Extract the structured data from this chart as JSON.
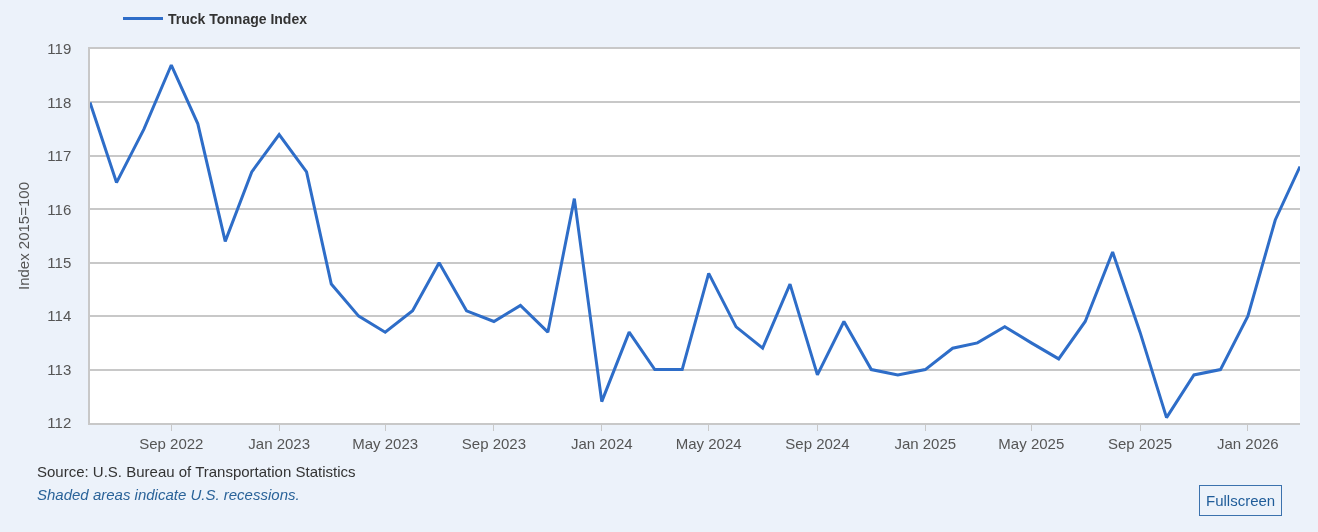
{
  "chart_data": {
    "type": "line",
    "ylabel": "Index 2015=100",
    "x": [
      "2022-06",
      "2022-07",
      "2022-08",
      "2022-09",
      "2022-10",
      "2022-11",
      "2022-12",
      "2023-01",
      "2023-02",
      "2023-03",
      "2023-04",
      "2023-05",
      "2023-06",
      "2023-07",
      "2023-08",
      "2023-09",
      "2023-10",
      "2023-11",
      "2023-12",
      "2024-01",
      "2024-02",
      "2024-03",
      "2024-04",
      "2024-05",
      "2024-06",
      "2024-07",
      "2024-08",
      "2024-09",
      "2024-10",
      "2024-11",
      "2024-12",
      "2025-01",
      "2025-02",
      "2025-03",
      "2025-04",
      "2025-05",
      "2025-06",
      "2025-07",
      "2025-08",
      "2025-09",
      "2025-10",
      "2025-11",
      "2025-12",
      "2026-01",
      "2026-02",
      "2026-03"
    ],
    "series": [
      {
        "name": "Truck Tonnage Index",
        "color": "#2e6dc8",
        "values": [
          118.0,
          116.5,
          117.5,
          118.7,
          117.6,
          115.4,
          116.7,
          117.4,
          116.7,
          114.6,
          114.0,
          113.7,
          114.1,
          115.0,
          114.1,
          113.9,
          114.2,
          113.7,
          116.2,
          112.4,
          113.7,
          113.0,
          113.0,
          114.8,
          113.8,
          113.4,
          114.6,
          112.9,
          113.9,
          113.0,
          112.9,
          113.0,
          113.4,
          113.5,
          113.8,
          113.5,
          113.2,
          113.9,
          115.2,
          113.7,
          112.1,
          112.9,
          113.0,
          114.0,
          115.8,
          116.8
        ]
      }
    ],
    "xlim": [
      "2022-06",
      "2026-03"
    ],
    "xticks": [
      {
        "value": "2022-09",
        "label": "Sep 2022"
      },
      {
        "value": "2023-01",
        "label": "Jan 2023"
      },
      {
        "value": "2023-05",
        "label": "May 2023"
      },
      {
        "value": "2023-09",
        "label": "Sep 2023"
      },
      {
        "value": "2024-01",
        "label": "Jan 2024"
      },
      {
        "value": "2024-05",
        "label": "May 2024"
      },
      {
        "value": "2024-09",
        "label": "Sep 2024"
      },
      {
        "value": "2025-01",
        "label": "Jan 2025"
      },
      {
        "value": "2025-05",
        "label": "May 2025"
      },
      {
        "value": "2025-09",
        "label": "Sep 2025"
      },
      {
        "value": "2026-01",
        "label": "Jan 2026"
      }
    ],
    "ylim": [
      112,
      119
    ],
    "yticks": [
      112,
      113,
      114,
      115,
      116,
      117,
      118,
      119
    ],
    "grid": "y",
    "legend": "top left",
    "line_style": "solid",
    "annotations": [
      "Source: U.S. Bureau of Transportation Statistics",
      "Shaded areas indicate U.S. recessions.",
      "Fullscreen"
    ]
  }
}
